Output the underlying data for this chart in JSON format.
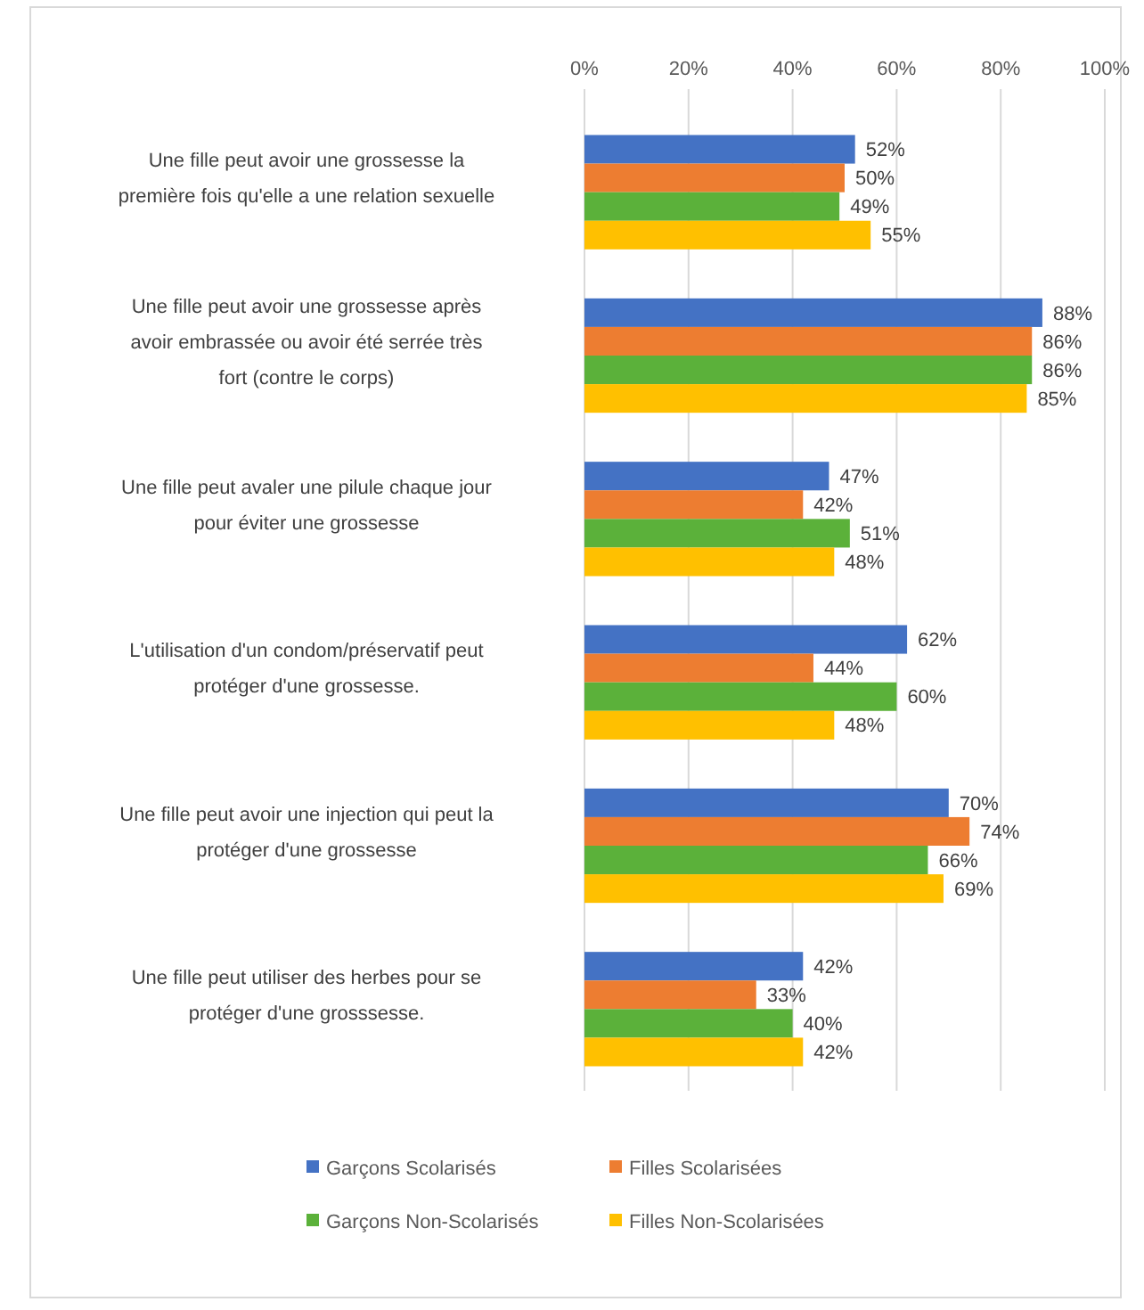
{
  "chart_data": {
    "type": "bar",
    "orientation": "horizontal",
    "categories": [
      "Une fille peut avoir une grossesse la première fois qu'elle a une relation sexuelle",
      "Une fille peut avoir une grossesse après avoir embrassée ou avoir été serrée très fort (contre le corps)",
      "Une fille peut avaler une pilule chaque jour pour éviter une grossesse",
      "L'utilisation d'un condom/préservatif peut protéger d'une grossesse.",
      "Une fille peut avoir une injection qui peut la protéger d'une grossesse",
      "Une fille peut utiliser des herbes pour se protéger d'une grosssesse."
    ],
    "series": [
      {
        "name": "Garçons Scolarisés",
        "color": "#4472c4",
        "values": [
          52,
          88,
          47,
          62,
          70,
          42
        ],
        "value_labels": [
          "52%",
          "88%",
          "47%",
          "62%",
          "70%",
          "42%"
        ]
      },
      {
        "name": "Filles Scolarisées",
        "color": "#ed7d31",
        "values": [
          50,
          86,
          42,
          44,
          74,
          33
        ],
        "value_labels": [
          "50%",
          "86%",
          "42%",
          "44%",
          "74%",
          "33%"
        ]
      },
      {
        "name": "Garçons Non-Scolarisés",
        "color": "#5bb13a",
        "values": [
          49,
          86,
          51,
          60,
          66,
          40
        ],
        "value_labels": [
          "49%",
          "86%",
          "51%",
          "60%",
          "66%",
          "40%"
        ]
      },
      {
        "name": "Filles Non-Scolarisées",
        "color": "#ffc000",
        "values": [
          55,
          85,
          48,
          48,
          69,
          42
        ],
        "value_labels": [
          "55%",
          "85%",
          "48%",
          "48%",
          "69%",
          "42%"
        ]
      }
    ],
    "xlim": [
      0,
      100
    ],
    "xticks": [
      {
        "value": 0,
        "label": "0%"
      },
      {
        "value": 20,
        "label": "20%"
      },
      {
        "value": 40,
        "label": "40%"
      },
      {
        "value": 60,
        "label": "60%"
      },
      {
        "value": 80,
        "label": "80%"
      },
      {
        "value": 100,
        "label": "100%"
      }
    ],
    "grid": "x",
    "legend": "bottom"
  }
}
